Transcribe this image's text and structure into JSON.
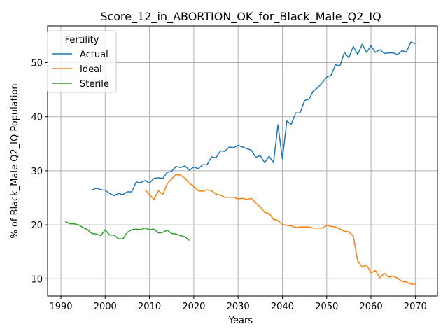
{
  "chart_data": {
    "type": "line",
    "title": "Score_12_in_ABORTION_OK_for_Black_Male_Q2_IQ",
    "xlabel": "Years",
    "ylabel": "% of Black_Male Q2_IQ Population",
    "xlim": [
      1987,
      2075
    ],
    "ylim": [
      6.8,
      56.8
    ],
    "xticks": [
      1990,
      2000,
      2010,
      2020,
      2030,
      2040,
      2050,
      2060,
      2070
    ],
    "yticks": [
      10,
      20,
      30,
      40,
      50
    ],
    "grid": true,
    "legend": {
      "title": "Fertility",
      "placement": "top-left"
    },
    "series": [
      {
        "name": "Actual",
        "color": "#1f77b4",
        "x": [
          1997,
          1998,
          1999,
          2000,
          2001,
          2002,
          2003,
          2004,
          2005,
          2006,
          2007,
          2008,
          2009,
          2010,
          2011,
          2012,
          2013,
          2014,
          2015,
          2016,
          2017,
          2018,
          2019,
          2020,
          2021,
          2022,
          2023,
          2024,
          2025,
          2026,
          2027,
          2028,
          2029,
          2030,
          2031,
          2032,
          2033,
          2034,
          2035,
          2036,
          2037,
          2038,
          2039,
          2040,
          2041,
          2042,
          2043,
          2044,
          2045,
          2046,
          2047,
          2048,
          2049,
          2050,
          2051,
          2052,
          2053,
          2054,
          2055,
          2056,
          2057,
          2058,
          2059,
          2060,
          2061,
          2062,
          2063,
          2064,
          2065,
          2066,
          2067,
          2068,
          2069,
          2070
        ],
        "y": [
          26.4,
          26.8,
          26.5,
          26.4,
          25.8,
          25.4,
          25.8,
          25.6,
          26.1,
          26.1,
          27.9,
          27.8,
          28.2,
          27.7,
          28.6,
          28.7,
          28.6,
          29.7,
          29.9,
          30.8,
          30.6,
          30.9,
          30.1,
          30.7,
          30.4,
          31.1,
          31.1,
          32.6,
          32.4,
          33.7,
          33.6,
          34.4,
          34.3,
          34.7,
          34.4,
          34.1,
          33.8,
          32.5,
          32.8,
          31.5,
          32.7,
          31.5,
          38.5,
          32.2,
          39.2,
          38.6,
          40.7,
          40.7,
          43.0,
          43.2,
          44.8,
          45.4,
          46.3,
          47.3,
          47.7,
          49.6,
          49.4,
          51.9,
          50.9,
          53.0,
          51.5,
          53.4,
          51.9,
          53.1,
          51.9,
          52.4,
          51.7,
          51.8,
          51.8,
          51.5,
          52.2,
          52.0,
          53.8,
          53.5
        ]
      },
      {
        "name": "Ideal",
        "color": "#ff7f0e",
        "x": [
          2009,
          2010,
          2011,
          2012,
          2013,
          2014,
          2015,
          2016,
          2017,
          2018,
          2019,
          2020,
          2021,
          2022,
          2023,
          2024,
          2025,
          2026,
          2027,
          2028,
          2029,
          2030,
          2031,
          2032,
          2033,
          2034,
          2035,
          2036,
          2037,
          2038,
          2039,
          2040,
          2041,
          2042,
          2043,
          2044,
          2045,
          2046,
          2047,
          2048,
          2049,
          2050,
          2051,
          2052,
          2053,
          2054,
          2055,
          2056,
          2057,
          2058,
          2059,
          2060,
          2061,
          2062,
          2063,
          2064,
          2065,
          2066,
          2067,
          2068,
          2069,
          2070
        ],
        "y": [
          26.5,
          25.6,
          24.7,
          26.3,
          25.6,
          27.6,
          28.5,
          29.3,
          29.2,
          28.6,
          27.7,
          27.1,
          26.3,
          26.2,
          26.5,
          26.3,
          25.7,
          25.5,
          25.1,
          25.1,
          25.1,
          24.8,
          24.9,
          24.7,
          24.9,
          24.0,
          23.3,
          22.3,
          22.1,
          21.0,
          20.8,
          20.1,
          19.9,
          19.8,
          19.5,
          19.6,
          19.6,
          19.6,
          19.4,
          19.4,
          19.4,
          19.9,
          19.7,
          19.6,
          19.2,
          18.8,
          18.7,
          17.9,
          13.3,
          12.2,
          12.5,
          11.1,
          11.5,
          10.2,
          11.0,
          10.3,
          10.5,
          10.1,
          9.5,
          9.4,
          9.0,
          9.0
        ]
      },
      {
        "name": "Sterile",
        "color": "#2ca02c",
        "x": [
          1991,
          1992,
          1993,
          1994,
          1995,
          1996,
          1997,
          1998,
          1999,
          2000,
          2001,
          2002,
          2003,
          2004,
          2005,
          2006,
          2007,
          2008,
          2009,
          2010,
          2011,
          2012,
          2013,
          2014,
          2015,
          2016,
          2017,
          2018,
          2019
        ],
        "y": [
          20.6,
          20.2,
          20.2,
          20.0,
          19.5,
          19.1,
          18.4,
          18.3,
          18.0,
          19.1,
          18.1,
          18.1,
          17.4,
          17.4,
          18.6,
          19.1,
          19.2,
          19.1,
          19.4,
          19.1,
          19.2,
          18.5,
          18.6,
          19.0,
          18.4,
          18.3,
          18.0,
          17.8,
          17.1
        ]
      }
    ]
  }
}
